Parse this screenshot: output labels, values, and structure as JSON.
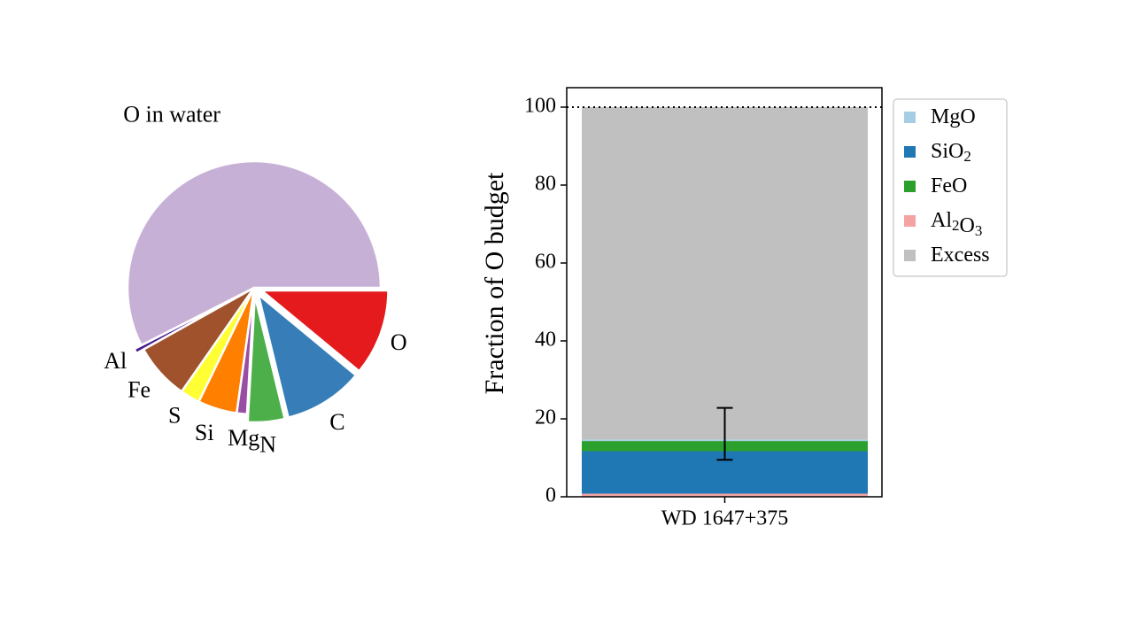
{
  "chart_data": [
    {
      "type": "pie",
      "slices": [
        {
          "label": "O in water",
          "value": 57.5,
          "color": "#c7b0d6",
          "exploded": false
        },
        {
          "label": "Al",
          "value": 0.6,
          "color": "#4b1b8e",
          "exploded": true
        },
        {
          "label": "Fe",
          "value": 7.2,
          "color": "#a0522d",
          "exploded": false
        },
        {
          "label": "S",
          "value": 2.5,
          "color": "#ffff33",
          "exploded": false
        },
        {
          "label": "Si",
          "value": 5.0,
          "color": "#ff7f00",
          "exploded": false
        },
        {
          "label": "Mg",
          "value": 1.3,
          "color": "#984ea3",
          "exploded": false
        },
        {
          "label": "N",
          "value": 4.7,
          "color": "#4daf4a",
          "exploded": true
        },
        {
          "label": "C",
          "value": 10.2,
          "color": "#377eb8",
          "exploded": true
        },
        {
          "label": "O",
          "value": 11.0,
          "color": "#e41a1c",
          "exploded": true
        }
      ]
    },
    {
      "type": "bar",
      "stacked": true,
      "categories": [
        "WD 1647+375"
      ],
      "ylabel": "Fraction of O budget",
      "ylim": [
        0,
        100
      ],
      "yticks": [
        "0",
        "20",
        "40",
        "60",
        "80",
        "100"
      ],
      "reference_line": {
        "y": 100,
        "style": "dotted"
      },
      "series": [
        {
          "name": "Al2O3",
          "label_base": "Al",
          "label_sub1": "2",
          "label_mid": "O",
          "label_sub2": "3",
          "values": [
            0.8
          ],
          "color": "#f4a3a3"
        },
        {
          "name": "SiO2",
          "label_base": "SiO",
          "label_sub1": "2",
          "label_mid": "",
          "label_sub2": "",
          "values": [
            10.9
          ],
          "color": "#1f77b4"
        },
        {
          "name": "FeO",
          "label_base": "FeO",
          "label_sub1": "",
          "label_mid": "",
          "label_sub2": "",
          "values": [
            2.6
          ],
          "color": "#2ca02c"
        },
        {
          "name": "MgO",
          "label_base": "MgO",
          "label_sub1": "",
          "label_mid": "",
          "label_sub2": "",
          "values": [
            0.4
          ],
          "color": "#a6cee3"
        },
        {
          "name": "Excess",
          "label_base": "Excess",
          "label_sub1": "",
          "label_mid": "",
          "label_sub2": "",
          "values": [
            85.3
          ],
          "color": "#c0c0c0"
        }
      ],
      "errorbar": {
        "y": 14.7,
        "lower": 9.5,
        "upper": 22.8
      },
      "legend_order": [
        "MgO",
        "SiO2",
        "FeO",
        "Al2O3",
        "Excess"
      ],
      "legend_position": "outside upper right"
    }
  ]
}
